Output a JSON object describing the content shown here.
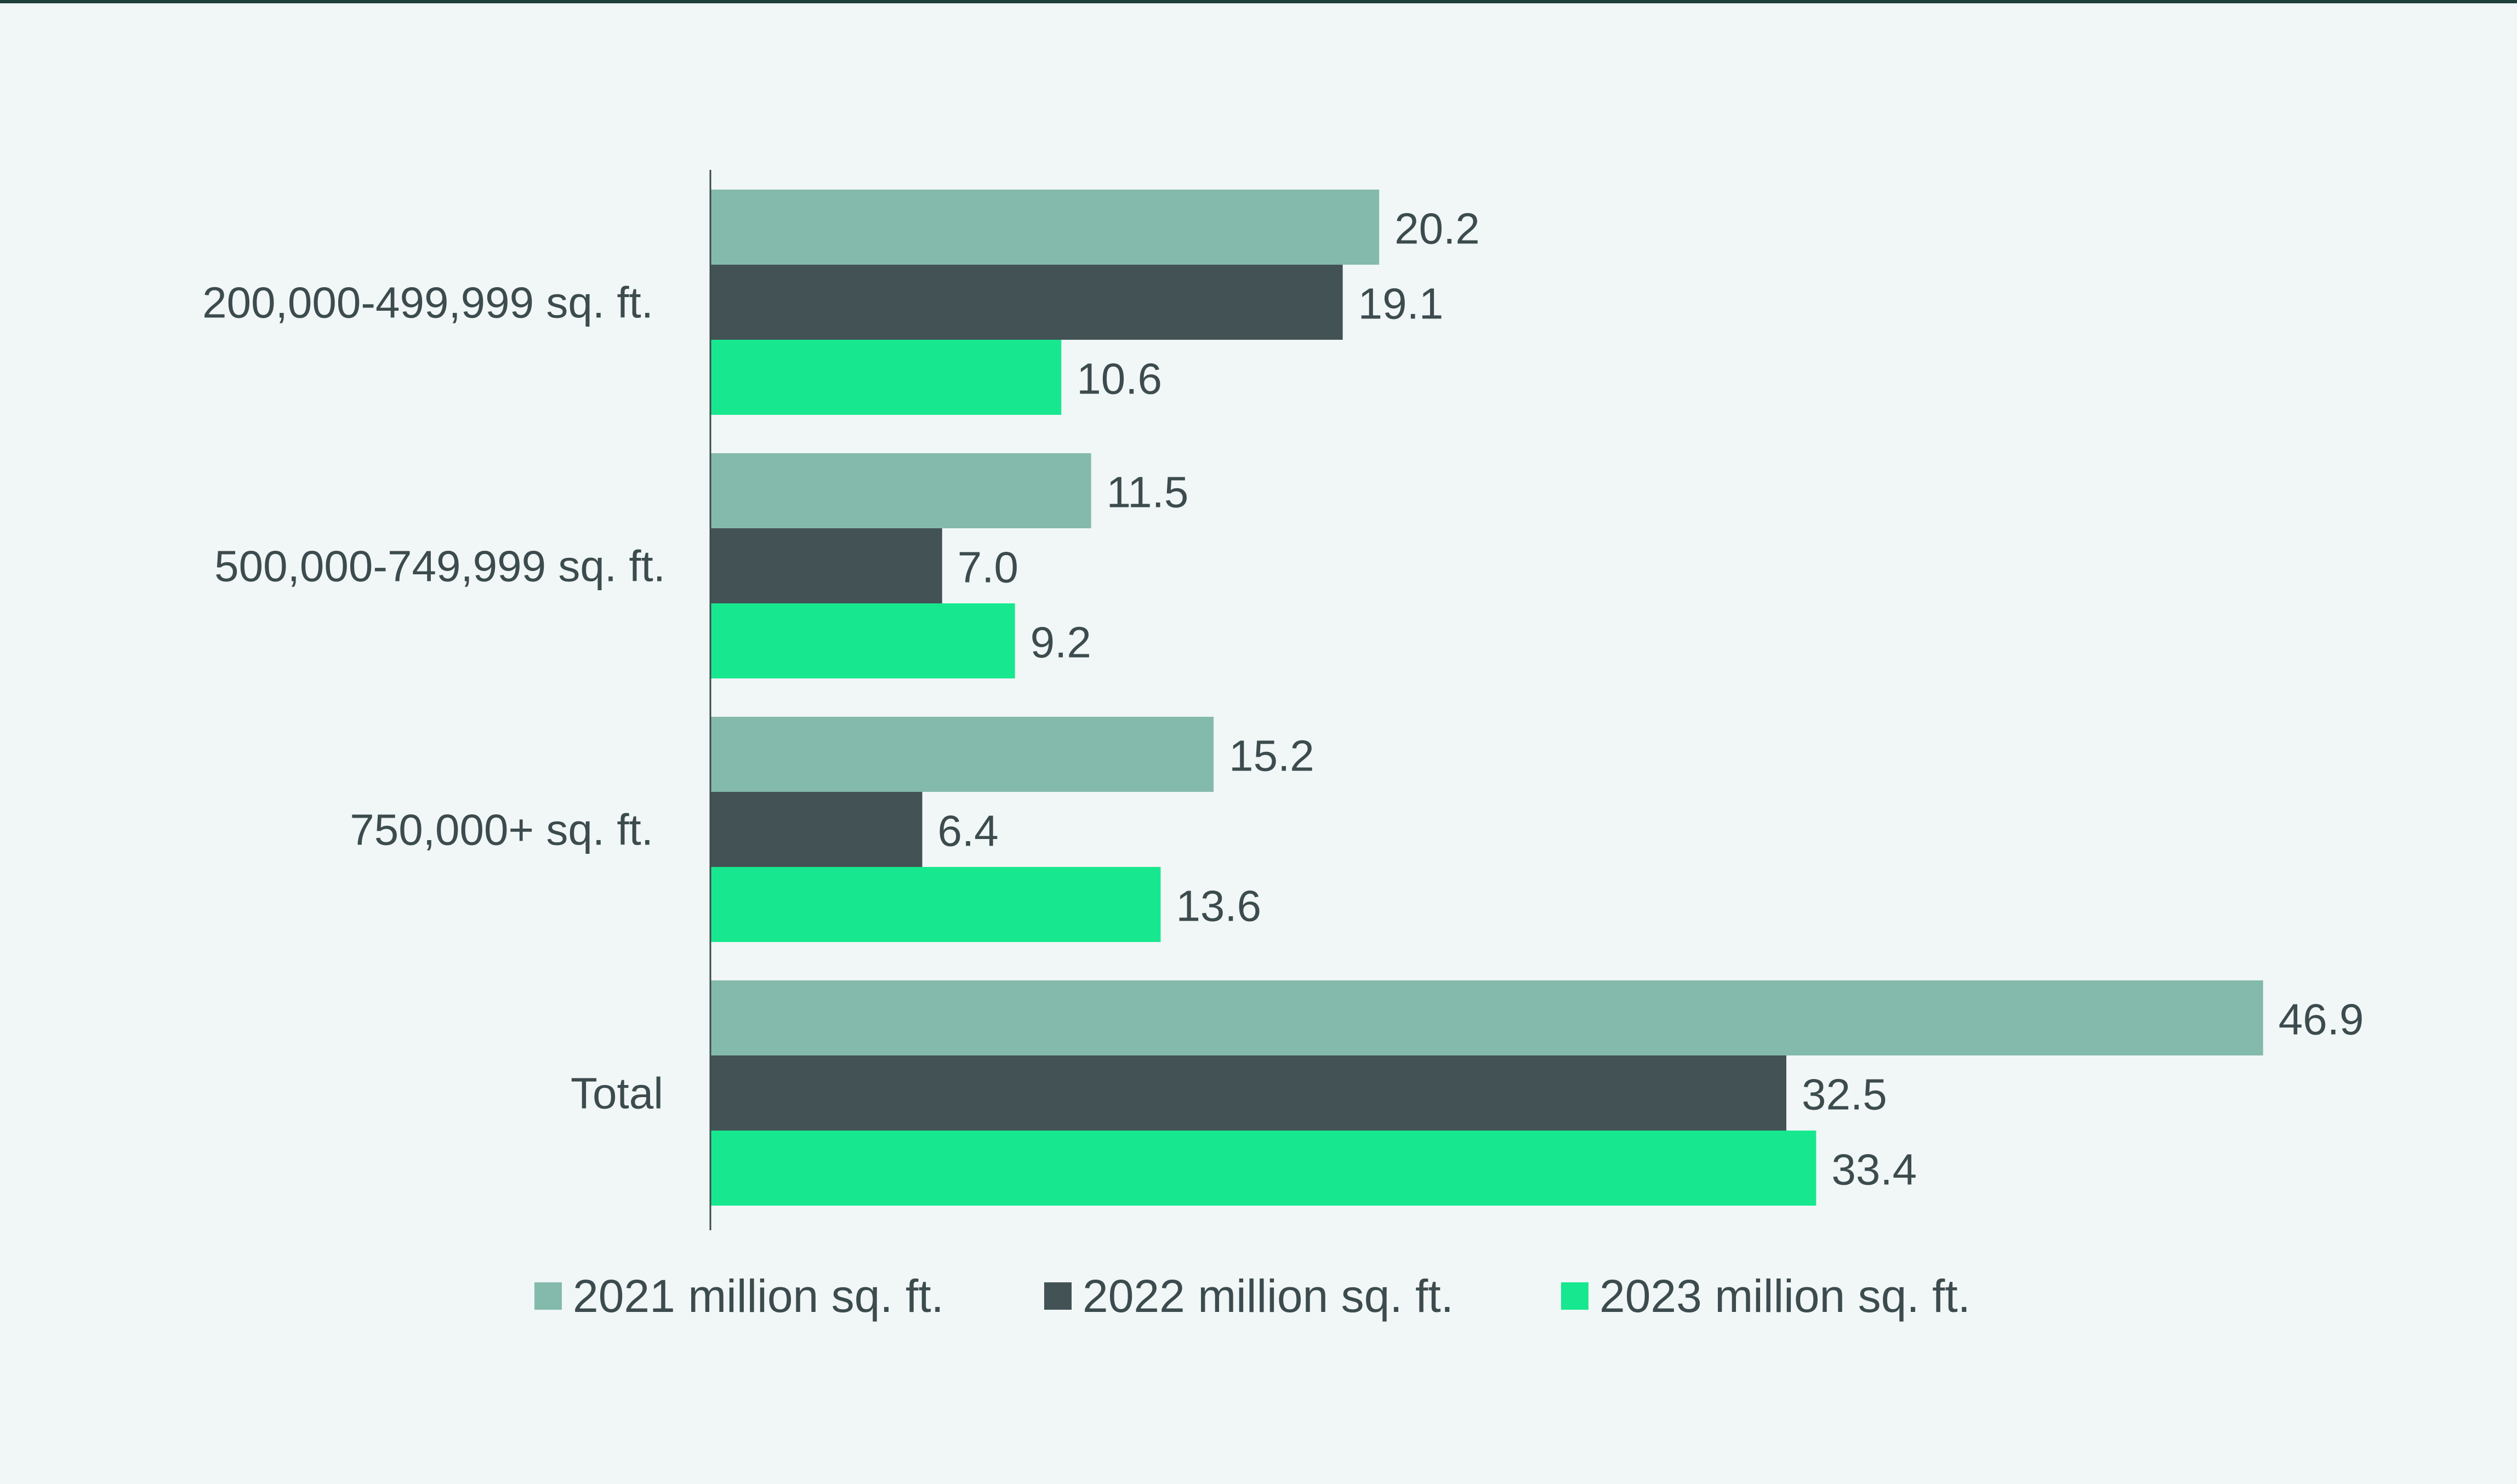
{
  "colors": {
    "background": "#f1f6f6",
    "top_rule": "#1e3f3c",
    "axis": "#3c4b4e",
    "text": "#3c4b4e"
  },
  "chart_data": {
    "type": "bar",
    "orientation": "horizontal",
    "title": "",
    "xlabel": "",
    "ylabel": "",
    "categories": [
      "200,000-499,999 sq. ft.",
      "500,000-749,999 sq. ft.",
      "750,000+ sq. ft.",
      "Total"
    ],
    "series": [
      {
        "name": "2021 million sq. ft.",
        "color": "#84baab",
        "values": [
          20.2,
          11.5,
          15.2,
          46.9
        ],
        "labels": [
          "20.2",
          "11.5",
          "15.2",
          "46.9"
        ]
      },
      {
        "name": "2022 million sq. ft.",
        "color": "#435255",
        "values": [
          19.1,
          7.0,
          6.4,
          32.5
        ],
        "labels": [
          "19.1",
          "7.0",
          "6.4",
          "32.5"
        ]
      },
      {
        "name": "2023 million sq. ft.",
        "color": "#17e88f",
        "values": [
          10.6,
          9.2,
          13.6,
          33.4
        ],
        "labels": [
          "10.6",
          "9.2",
          "13.6",
          "33.4"
        ]
      }
    ],
    "xlim": [
      0,
      50
    ],
    "grid": false,
    "legend_position": "bottom"
  }
}
